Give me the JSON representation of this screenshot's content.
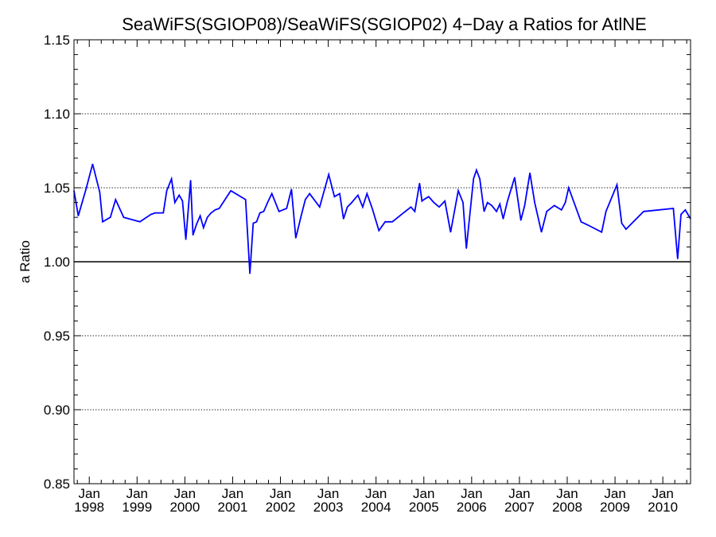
{
  "chart_data": {
    "type": "line",
    "title": "SeaWiFS(SGIOP08)/SeaWiFS(SGIOP02) 4−Day a Ratios for AtlNE",
    "xlabel": "",
    "ylabel": "a Ratio",
    "xlim": [
      1997.68,
      2010.58
    ],
    "ylim": [
      0.85,
      1.15
    ],
    "y_ticks": [
      "0.85",
      "0.90",
      "0.95",
      "1.00",
      "1.05",
      "1.10",
      "1.15"
    ],
    "y_tick_values": [
      0.85,
      0.9,
      0.95,
      1.0,
      1.05,
      1.1,
      1.15
    ],
    "x_ticks": [
      {
        "line1": "Jan",
        "line2": "1998",
        "value": 1998.0
      },
      {
        "line1": "Jan",
        "line2": "1999",
        "value": 1999.0
      },
      {
        "line1": "Jan",
        "line2": "2000",
        "value": 2000.0
      },
      {
        "line1": "Jan",
        "line2": "2001",
        "value": 2001.0
      },
      {
        "line1": "Jan",
        "line2": "2002",
        "value": 2002.0
      },
      {
        "line1": "Jan",
        "line2": "2003",
        "value": 2003.0
      },
      {
        "line1": "Jan",
        "line2": "2004",
        "value": 2004.0
      },
      {
        "line1": "Jan",
        "line2": "2005",
        "value": 2005.0
      },
      {
        "line1": "Jan",
        "line2": "2006",
        "value": 2006.0
      },
      {
        "line1": "Jan",
        "line2": "2007",
        "value": 2007.0
      },
      {
        "line1": "Jan",
        "line2": "2008",
        "value": 2008.0
      },
      {
        "line1": "Jan",
        "line2": "2009",
        "value": 2009.0
      },
      {
        "line1": "Jan",
        "line2": "2010",
        "value": 2010.0
      }
    ],
    "grid": "horizontal dotted",
    "reference_line": 1.0,
    "series": [
      {
        "color": "#0000ff",
        "x": [
          1997.68,
          1997.77,
          1997.94,
          1998.07,
          1998.22,
          1998.28,
          1998.44,
          1998.55,
          1998.72,
          1999.06,
          1999.29,
          1999.38,
          1999.55,
          1999.62,
          1999.72,
          1999.79,
          1999.88,
          1999.95,
          2000.02,
          2000.12,
          2000.17,
          2000.24,
          2000.32,
          2000.39,
          2000.47,
          2000.55,
          2000.63,
          2000.72,
          2000.96,
          2001.27,
          2001.36,
          2001.43,
          2001.5,
          2001.57,
          2001.65,
          2001.73,
          2001.82,
          2001.97,
          2002.13,
          2002.23,
          2002.32,
          2002.44,
          2002.52,
          2002.61,
          2002.82,
          2003.01,
          2003.13,
          2003.24,
          2003.32,
          2003.4,
          2003.49,
          2003.62,
          2003.72,
          2003.81,
          2003.92,
          2004.06,
          2004.19,
          2004.34,
          2004.73,
          2004.81,
          2004.91,
          2004.96,
          2005.0,
          2005.1,
          2005.21,
          2005.32,
          2005.44,
          2005.56,
          2005.72,
          2005.82,
          2005.89,
          2006.04,
          2006.1,
          2006.17,
          2006.26,
          2006.33,
          2006.42,
          2006.52,
          2006.59,
          2006.66,
          2006.75,
          2006.9,
          2007.03,
          2007.11,
          2007.22,
          2007.32,
          2007.46,
          2007.57,
          2007.73,
          2007.88,
          2007.96,
          2008.03,
          2008.29,
          2008.42,
          2008.72,
          2008.81,
          2009.04,
          2009.14,
          2009.23,
          2009.6,
          2010.22,
          2010.31,
          2010.38,
          2010.47,
          2010.58
        ],
        "y": [
          1.048,
          1.031,
          1.05,
          1.066,
          1.047,
          1.027,
          1.03,
          1.042,
          1.03,
          1.027,
          1.032,
          1.033,
          1.033,
          1.048,
          1.056,
          1.04,
          1.045,
          1.041,
          1.015,
          1.055,
          1.018,
          1.025,
          1.031,
          1.023,
          1.03,
          1.033,
          1.035,
          1.036,
          1.048,
          1.042,
          0.992,
          1.026,
          1.027,
          1.033,
          1.034,
          1.04,
          1.046,
          1.034,
          1.036,
          1.049,
          1.016,
          1.032,
          1.042,
          1.046,
          1.037,
          1.059,
          1.044,
          1.046,
          1.029,
          1.037,
          1.04,
          1.045,
          1.037,
          1.046,
          1.036,
          1.021,
          1.027,
          1.027,
          1.037,
          1.034,
          1.053,
          1.041,
          1.042,
          1.044,
          1.04,
          1.037,
          1.041,
          1.02,
          1.048,
          1.04,
          1.009,
          1.056,
          1.062,
          1.056,
          1.034,
          1.04,
          1.038,
          1.034,
          1.039,
          1.029,
          1.041,
          1.057,
          1.028,
          1.038,
          1.06,
          1.04,
          1.02,
          1.034,
          1.038,
          1.035,
          1.04,
          1.05,
          1.027,
          1.025,
          1.02,
          1.034,
          1.052,
          1.026,
          1.022,
          1.034,
          1.036,
          1.002,
          1.032,
          1.035,
          1.029
        ]
      }
    ]
  }
}
